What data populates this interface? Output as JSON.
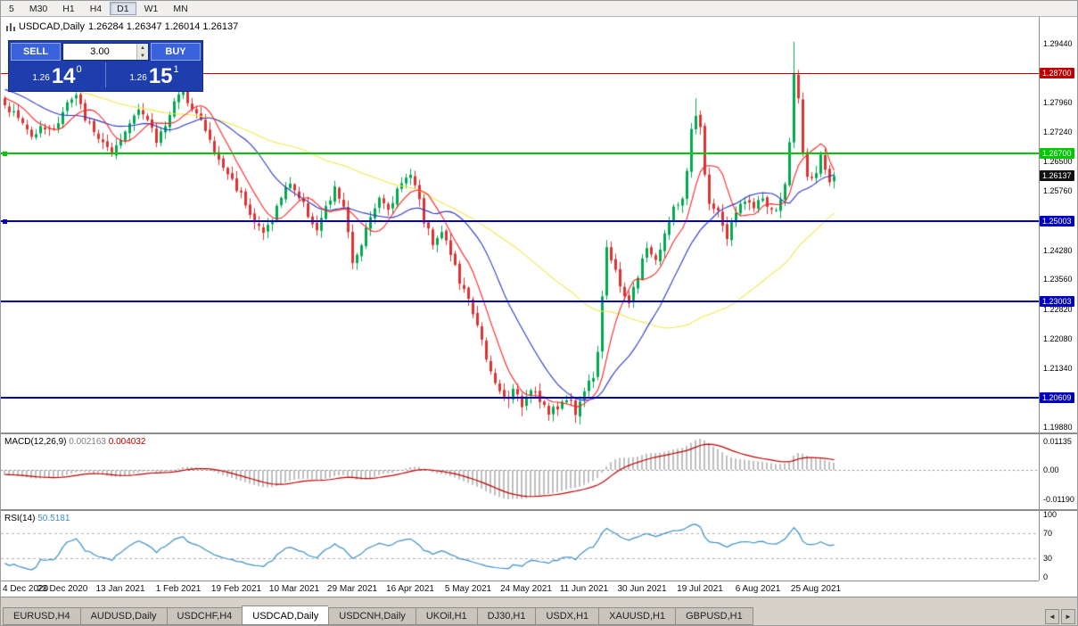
{
  "toolbar": {
    "timeframes": [
      "5",
      "M30",
      "H1",
      "H4",
      "D1",
      "W1",
      "MN"
    ],
    "active": "D1"
  },
  "chart": {
    "symbol_timeframe": "USDCAD,Daily",
    "ohlc": "1.26284 1.26347 1.26014 1.26137"
  },
  "trade_panel": {
    "sell_button": "SELL",
    "buy_button": "BUY",
    "volume": "3.00",
    "spinner_up": "▲",
    "spinner_down": "▼",
    "sell_price": {
      "prefix": "1.26",
      "big": "14",
      "sup": "0"
    },
    "buy_price": {
      "prefix": "1.26",
      "big": "15",
      "sup": "1"
    }
  },
  "price_axis": {
    "labels": [
      "1.29440",
      "1.27960",
      "1.27240",
      "1.26500",
      "1.25760",
      "1.24280",
      "1.23560",
      "1.22820",
      "1.22080",
      "1.21340",
      "1.19880"
    ]
  },
  "h_lines": [
    {
      "price": 1.287,
      "label": "1.28700",
      "color": "#c00000",
      "thickness": 1,
      "handle": false,
      "name": "resistance-line-red"
    },
    {
      "price": 1.267,
      "label": "1.26700",
      "color": "#00c800",
      "thickness": 2,
      "handle": true,
      "name": "support-line-green"
    },
    {
      "price": 1.25003,
      "label": "1.25003",
      "color": "#0000c0",
      "thickness": 2,
      "handle": true,
      "name": "support-line-blue-1"
    },
    {
      "price": 1.23003,
      "label": "1.23003",
      "color": "#0000c0",
      "thickness": 2,
      "handle": false,
      "name": "support-line-blue-2"
    },
    {
      "price": 1.20609,
      "label": "1.20609",
      "color": "#0000c0",
      "thickness": 2,
      "handle": false,
      "name": "support-line-blue-3"
    }
  ],
  "current_price": {
    "label": "1.26137",
    "price": 1.26137,
    "color": "#111111"
  },
  "macd": {
    "name": "MACD(12,26,9)",
    "value_main": "0.002163",
    "value_signal": "0.004032",
    "axis": [
      {
        "label": "0.01135",
        "value": 0.01135
      },
      {
        "label": "0.00",
        "value": 0.0
      },
      {
        "label": "-0.01190",
        "value": -0.0119
      }
    ]
  },
  "rsi": {
    "name": "RSI(14)",
    "value": "50.5181",
    "axis": [
      {
        "label": "100",
        "value": 100
      },
      {
        "label": "70",
        "value": 70
      },
      {
        "label": "30",
        "value": 30
      },
      {
        "label": "0",
        "value": 0
      }
    ],
    "levels": [
      70,
      30
    ]
  },
  "time_axis": {
    "ticks": [
      {
        "i": 0,
        "label": "4 Dec 2020"
      },
      {
        "i": 13,
        "label": "23 Dec 2020"
      },
      {
        "i": 26,
        "label": "13 Jan 2021"
      },
      {
        "i": 39,
        "label": "1 Feb 2021"
      },
      {
        "i": 52,
        "label": "19 Feb 2021"
      },
      {
        "i": 65,
        "label": "10 Mar 2021"
      },
      {
        "i": 78,
        "label": "29 Mar 2021"
      },
      {
        "i": 91,
        "label": "16 Apr 2021"
      },
      {
        "i": 104,
        "label": "5 May 2021"
      },
      {
        "i": 117,
        "label": "24 May 2021"
      },
      {
        "i": 130,
        "label": "11 Jun 2021"
      },
      {
        "i": 143,
        "label": "30 Jun 2021"
      },
      {
        "i": 156,
        "label": "19 Jul 2021"
      },
      {
        "i": 169,
        "label": "6 Aug 2021"
      },
      {
        "i": 182,
        "label": "25 Aug 2021"
      }
    ]
  },
  "tabs": {
    "items": [
      "EURUSD,H4",
      "AUDUSD,Daily",
      "USDCHF,H4",
      "USDCAD,Daily",
      "USDCNH,Daily",
      "UKOil,H1",
      "DJ30,H1",
      "USDX,H1",
      "XAUUSD,H1",
      "GBPUSD,H1"
    ],
    "active": "USDCAD,Daily",
    "scroll_left": "◄",
    "scroll_right": "►"
  },
  "chart_data": {
    "type": "candlestick",
    "symbol": "USDCAD",
    "timeframe": "Daily",
    "bars": 187,
    "final_close": 1.26137,
    "low_floor": 1.1988,
    "up_color": "#00a94f",
    "down_color": "#dd3232",
    "close_path_anchors": [
      [
        0,
        1.279
      ],
      [
        2,
        1.277
      ],
      [
        4,
        1.2745
      ],
      [
        6,
        1.271
      ],
      [
        8,
        1.2745
      ],
      [
        10,
        1.2725
      ],
      [
        12,
        1.275
      ],
      [
        14,
        1.2795
      ],
      [
        16,
        1.281
      ],
      [
        18,
        1.276
      ],
      [
        20,
        1.272
      ],
      [
        22,
        1.27
      ],
      [
        24,
        1.266
      ],
      [
        26,
        1.27
      ],
      [
        28,
        1.2745
      ],
      [
        30,
        1.279
      ],
      [
        32,
        1.275
      ],
      [
        34,
        1.27
      ],
      [
        36,
        1.2745
      ],
      [
        38,
        1.28
      ],
      [
        40,
        1.282
      ],
      [
        42,
        1.279
      ],
      [
        44,
        1.275
      ],
      [
        46,
        1.27
      ],
      [
        48,
        1.265
      ],
      [
        50,
        1.262
      ],
      [
        52,
        1.2585
      ],
      [
        54,
        1.255
      ],
      [
        56,
        1.25
      ],
      [
        58,
        1.247
      ],
      [
        60,
        1.251
      ],
      [
        62,
        1.256
      ],
      [
        64,
        1.26
      ],
      [
        66,
        1.256
      ],
      [
        68,
        1.252
      ],
      [
        70,
        1.248
      ],
      [
        72,
        1.253
      ],
      [
        74,
        1.258
      ],
      [
        76,
        1.254
      ],
      [
        78,
        1.239
      ],
      [
        80,
        1.245
      ],
      [
        82,
        1.252
      ],
      [
        84,
        1.2555
      ],
      [
        86,
        1.253
      ],
      [
        88,
        1.258
      ],
      [
        90,
        1.262
      ],
      [
        92,
        1.26
      ],
      [
        94,
        1.25
      ],
      [
        96,
        1.245
      ],
      [
        98,
        1.248
      ],
      [
        100,
        1.242
      ],
      [
        102,
        1.235
      ],
      [
        104,
        1.23
      ],
      [
        106,
        1.225
      ],
      [
        108,
        1.215
      ],
      [
        110,
        1.2095
      ],
      [
        112,
        1.206
      ],
      [
        114,
        1.2075
      ],
      [
        116,
        1.2045
      ],
      [
        118,
        1.209
      ],
      [
        120,
        1.206
      ],
      [
        122,
        1.202
      ],
      [
        124,
        1.2035
      ],
      [
        126,
        1.2065
      ],
      [
        128,
        1.2025
      ],
      [
        130,
        1.208
      ],
      [
        132,
        1.212
      ],
      [
        133,
        1.218
      ],
      [
        134,
        1.232
      ],
      [
        135,
        1.244
      ],
      [
        136,
        1.24
      ],
      [
        138,
        1.234
      ],
      [
        140,
        1.23
      ],
      [
        142,
        1.236
      ],
      [
        144,
        1.244
      ],
      [
        146,
        1.24
      ],
      [
        148,
        1.247
      ],
      [
        150,
        1.253
      ],
      [
        152,
        1.256
      ],
      [
        153,
        1.262
      ],
      [
        154,
        1.272
      ],
      [
        155,
        1.276
      ],
      [
        156,
        1.273
      ],
      [
        157,
        1.261
      ],
      [
        158,
        1.255
      ],
      [
        160,
        1.252
      ],
      [
        162,
        1.246
      ],
      [
        164,
        1.252
      ],
      [
        166,
        1.256
      ],
      [
        168,
        1.253
      ],
      [
        170,
        1.256
      ],
      [
        172,
        1.252
      ],
      [
        174,
        1.255
      ],
      [
        175,
        1.259
      ],
      [
        176,
        1.27
      ],
      [
        177,
        1.287
      ],
      [
        178,
        1.28
      ],
      [
        179,
        1.268
      ],
      [
        180,
        1.262
      ],
      [
        181,
        1.26
      ],
      [
        182,
        1.261
      ],
      [
        183,
        1.2665
      ],
      [
        184,
        1.262
      ],
      [
        185,
        1.26
      ],
      [
        186,
        1.26137
      ]
    ],
    "special_highs": [
      [
        155,
        1.2807
      ],
      [
        177,
        1.2948
      ]
    ],
    "moving_averages": [
      {
        "period": 55,
        "color": "#efe94a"
      },
      {
        "period": 20,
        "color": "#2a35c8"
      },
      {
        "period": 8,
        "color": "#ff2222"
      }
    ],
    "indicators": [
      {
        "name": "MACD",
        "params": [
          12,
          26,
          9
        ],
        "current": [
          0.002163,
          0.004032
        ],
        "axis_max": 0.01135,
        "axis_min": -0.0119,
        "histogram_color": "#bfbfbf",
        "signal_color": "#c00000"
      },
      {
        "name": "RSI",
        "params": [
          14
        ],
        "current": 50.5181,
        "levels": [
          70,
          30
        ],
        "line_color": "#3a8fc9"
      }
    ]
  }
}
